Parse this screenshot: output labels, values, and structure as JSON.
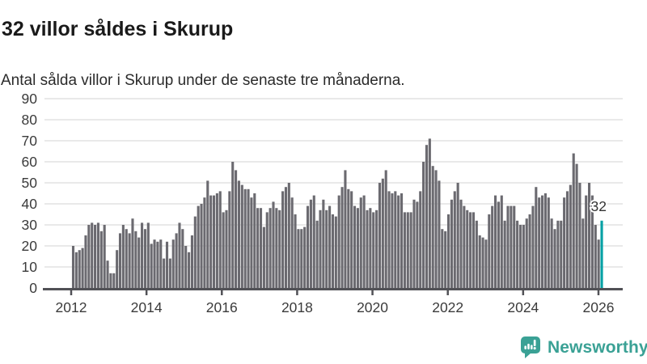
{
  "header": {
    "title": "32 villor såldes i Skurup",
    "subtitle": "Antal sålda villor i Skurup under de senaste tre månaderna."
  },
  "footer": {
    "brand": "Newsworthy"
  },
  "colors": {
    "bar": "#6b6a70",
    "highlight": "#00a0a4",
    "axis": "#515156",
    "grid": "#e2e2e2",
    "tick_text": "#3b3b3b",
    "value_label": "#333333",
    "brand_teal": "#3aa195",
    "title_text": "#1a1a1a",
    "subtitle_text": "#2b2b2b"
  },
  "chart_data": {
    "type": "bar",
    "title": "32 villor såldes i Skurup",
    "subtitle": "Antal sålda villor i Skurup under de senaste tre månaderna.",
    "unit": "villor per 3 månader",
    "frequency": "monthly",
    "start_month": "2012-01",
    "end_month": "2026-02",
    "ylim": [
      0,
      90
    ],
    "yticks": [
      0,
      10,
      20,
      30,
      40,
      50,
      60,
      70,
      80,
      90
    ],
    "xticks": [
      2012,
      2014,
      2016,
      2018,
      2020,
      2022,
      2024,
      2026
    ],
    "grid": "horizontal",
    "values": [
      20,
      17,
      18,
      19,
      25,
      30,
      31,
      30,
      31,
      27,
      30,
      13,
      7,
      7,
      18,
      26,
      30,
      28,
      26,
      33,
      27,
      24,
      31,
      28,
      31,
      21,
      23,
      22,
      23,
      14,
      22,
      14,
      23,
      26,
      31,
      28,
      20,
      17,
      25,
      34,
      39,
      40,
      43,
      51,
      44,
      44,
      45,
      46,
      36,
      37,
      46,
      60,
      56,
      51,
      49,
      47,
      47,
      43,
      45,
      38,
      38,
      29,
      36,
      38,
      41,
      38,
      37,
      46,
      48,
      50,
      43,
      35,
      28,
      28,
      29,
      39,
      42,
      44,
      32,
      37,
      42,
      37,
      39,
      35,
      34,
      44,
      48,
      56,
      47,
      46,
      39,
      38,
      43,
      44,
      37,
      38,
      36,
      37,
      50,
      52,
      56,
      46,
      45,
      46,
      44,
      45,
      36,
      36,
      36,
      42,
      41,
      46,
      60,
      68,
      71,
      58,
      56,
      51,
      28,
      27,
      35,
      42,
      46,
      50,
      42,
      39,
      37,
      36,
      36,
      32,
      25,
      24,
      23,
      35,
      39,
      44,
      41,
      44,
      32,
      39,
      39,
      39,
      32,
      30,
      30,
      33,
      35,
      39,
      48,
      43,
      44,
      45,
      43,
      33,
      28,
      32,
      32,
      43,
      46,
      49,
      64,
      59,
      50,
      33,
      44,
      50,
      44,
      30,
      23,
      32
    ],
    "highlight": {
      "index_from_end": 1,
      "value": 32,
      "label": "32"
    }
  }
}
